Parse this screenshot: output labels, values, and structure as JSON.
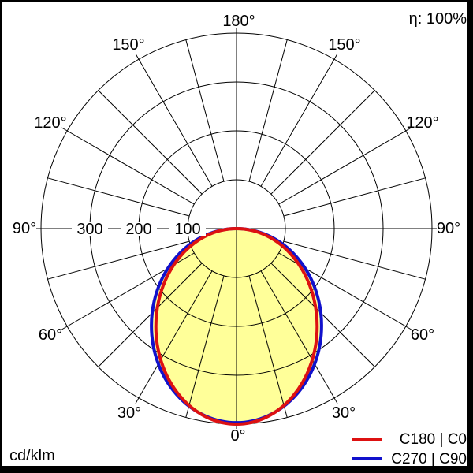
{
  "window": {
    "background": "#ffffff",
    "border_color": "#000000"
  },
  "header": {
    "efficiency_label": "η: 100%"
  },
  "footer": {
    "units_label": "cd/klm"
  },
  "polar_axis": {
    "angle_labels": {
      "a0": "0°",
      "a30": "30°",
      "a60": "60°",
      "a90": "90°",
      "a120": "120°",
      "a150": "150°",
      "a180": "180°"
    },
    "radial_labels": {
      "r100": "100",
      "r200": "200",
      "r300": "300"
    }
  },
  "chart_data": {
    "type": "polar",
    "subtype": "luminous-intensity-distribution",
    "title": "",
    "units": "cd/klm",
    "efficiency_percent": 100,
    "angle_zero_position": "bottom",
    "angle_grid_step_deg": 15,
    "angle_label_step_deg": 30,
    "radial_ticks": [
      100,
      200,
      300,
      400
    ],
    "radial_tick_labels_shown": [
      "100",
      "200",
      "300"
    ],
    "radial_max": 400,
    "fill_color": "#ffff99",
    "grid": true,
    "legend_position": "bottom-right",
    "series": [
      {
        "name": "C180 | C0",
        "color": "#dd1111",
        "angles_deg": [
          -90,
          -75,
          -60,
          -45,
          -30,
          -15,
          0,
          15,
          30,
          45,
          60,
          75,
          90
        ],
        "values": [
          0,
          75,
          154,
          236,
          315,
          376,
          400,
          376,
          315,
          236,
          154,
          75,
          0
        ],
        "peak_cd_per_klm": 400,
        "ellipse_model": {
          "semi_width": 165,
          "semi_depth": 200
        }
      },
      {
        "name": "C270 | C90",
        "color": "#1111cc",
        "angles_deg": [
          -90,
          -75,
          -60,
          -45,
          -30,
          -15,
          0,
          15,
          30,
          45,
          60,
          75,
          90
        ],
        "values": [
          0,
          82,
          164,
          247,
          322,
          377,
          397,
          377,
          322,
          247,
          164,
          82,
          0
        ],
        "peak_cd_per_klm": 397,
        "ellipse_model": {
          "semi_width": 174,
          "semi_depth": 198.5
        }
      }
    ]
  }
}
